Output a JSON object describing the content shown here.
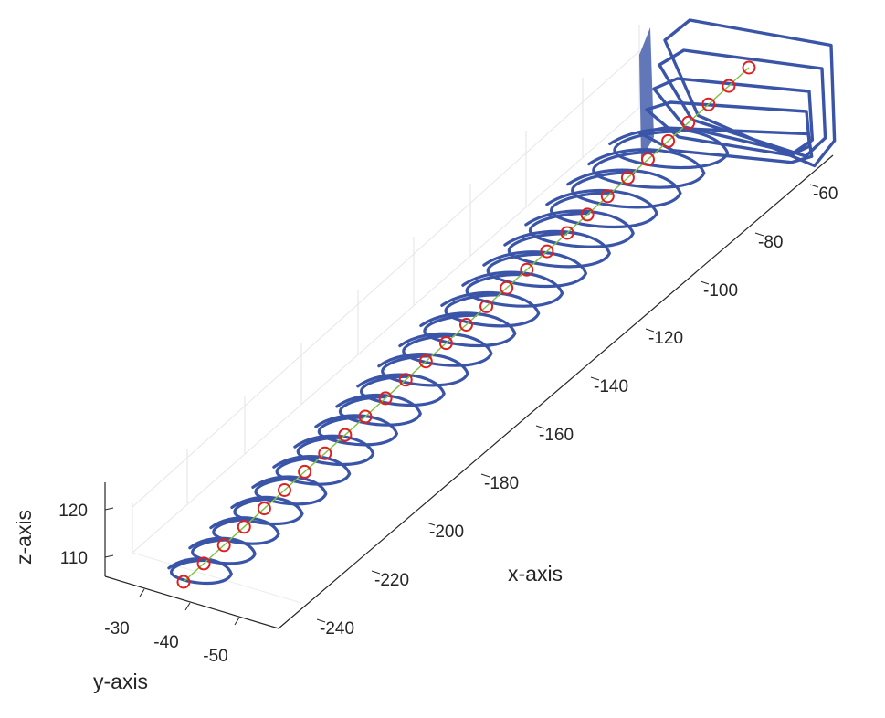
{
  "chart_data": {
    "type": "scatter",
    "view": "3d",
    "grid": true,
    "xlabel": "x-axis",
    "ylabel": "y-axis",
    "zlabel": "z-axis",
    "xlim": [
      -250,
      -55
    ],
    "ylim": [
      -55,
      -25
    ],
    "zlim": [
      105,
      127
    ],
    "x_ticks": [
      "-60",
      "-80",
      "-100",
      "-120",
      "-140",
      "-160",
      "-180",
      "-200",
      "-220",
      "-240"
    ],
    "y_ticks": [
      "-30",
      "-40",
      "-50"
    ],
    "z_ticks": [
      "110",
      "120"
    ],
    "series": [
      {
        "kind": "curve-loops",
        "color": "#3a55a8",
        "loop_centers_x": [
          -242,
          -235,
          -228,
          -221,
          -214,
          -207,
          -200,
          -193,
          -186,
          -179,
          -172,
          -165,
          -158,
          -151,
          -144,
          -137,
          -130,
          -123,
          -116,
          -109,
          -102,
          -95,
          -88,
          -81,
          -74,
          -68,
          -63
        ],
        "center_y": -40,
        "center_z": 112
      },
      {
        "kind": "markers",
        "marker": "circle",
        "color": "#e02020",
        "x": [
          -248,
          -241,
          -234,
          -227,
          -220,
          -213,
          -206,
          -199,
          -192,
          -185,
          -178,
          -171,
          -164,
          -157,
          -150,
          -143,
          -136,
          -129,
          -122,
          -115,
          -108,
          -101,
          -94,
          -87,
          -80,
          -74,
          -68,
          -63,
          -58
        ],
        "y": [
          -40,
          -40,
          -40,
          -40,
          -40,
          -40,
          -40,
          -40,
          -40,
          -40,
          -40,
          -40,
          -40,
          -40,
          -40,
          -40,
          -40,
          -40,
          -40,
          -40,
          -40,
          -40,
          -40,
          -40,
          -40,
          -40,
          -40,
          -40,
          -40
        ],
        "z": [
          107,
          109,
          111,
          113,
          115,
          117,
          119,
          121,
          123,
          125,
          127,
          129,
          131,
          133,
          135,
          137,
          139,
          141,
          143,
          145,
          147,
          149,
          151,
          153,
          155,
          157,
          159,
          161,
          163
        ]
      },
      {
        "kind": "centerline",
        "color": "#7fbf3f"
      }
    ]
  }
}
